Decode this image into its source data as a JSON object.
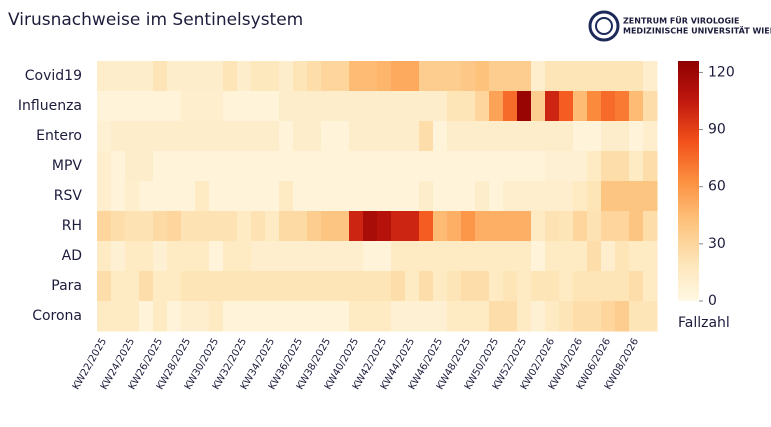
{
  "chart_data": {
    "type": "heatmap",
    "title": "Virusnachweise im Sentinelsystem",
    "logo": [
      "ZENTRUM FÜR VIROLOGIE",
      "MEDIZINISCHE UNIVERSITÄT WIEN"
    ],
    "colorbar_label": "Fallzahl",
    "rows": [
      "Covid19",
      "Influenza",
      "Entero",
      "MPV",
      "RSV",
      "RH",
      "AD",
      "Para",
      "Corona"
    ],
    "categories": [
      "KW22/2025",
      null,
      "KW24/2025",
      null,
      "KW26/2025",
      null,
      "KW28/2025",
      null,
      "KW30/2025",
      null,
      "KW32/2025",
      null,
      "KW34/2025",
      null,
      "KW36/2025",
      null,
      "KW38/2025",
      null,
      "KW40/2025",
      null,
      "KW42/2025",
      null,
      "KW44/2025",
      null,
      "KW46/2025",
      null,
      "KW48/2025",
      null,
      "KW50/2025",
      null,
      "KW52/2025",
      null,
      "KW02/2026",
      null,
      "KW04/2026",
      null,
      "KW06/2026",
      null,
      "KW08/2026",
      null
    ],
    "z": [
      [
        12,
        12,
        12,
        12,
        20,
        12,
        12,
        12,
        12,
        20,
        12,
        18,
        18,
        12,
        20,
        25,
        30,
        30,
        45,
        45,
        48,
        52,
        52,
        35,
        35,
        35,
        38,
        42,
        35,
        35,
        35,
        10,
        20,
        20,
        20,
        20,
        20,
        20,
        20,
        10
      ],
      [
        5,
        5,
        5,
        5,
        5,
        5,
        10,
        10,
        10,
        5,
        5,
        5,
        5,
        12,
        12,
        12,
        12,
        12,
        12,
        12,
        12,
        12,
        12,
        12,
        12,
        20,
        20,
        30,
        55,
        75,
        122,
        35,
        100,
        80,
        45,
        65,
        75,
        70,
        45,
        25
      ],
      [
        8,
        12,
        12,
        12,
        12,
        12,
        12,
        12,
        12,
        12,
        12,
        12,
        12,
        5,
        12,
        12,
        5,
        5,
        12,
        12,
        12,
        12,
        12,
        25,
        5,
        12,
        12,
        12,
        12,
        12,
        12,
        12,
        12,
        12,
        5,
        5,
        12,
        12,
        5,
        10
      ],
      [
        10,
        5,
        12,
        12,
        5,
        5,
        5,
        5,
        5,
        5,
        5,
        5,
        5,
        5,
        5,
        5,
        5,
        5,
        5,
        5,
        5,
        5,
        5,
        5,
        5,
        5,
        5,
        5,
        5,
        5,
        5,
        5,
        8,
        8,
        8,
        15,
        25,
        25,
        15,
        25
      ],
      [
        10,
        5,
        10,
        5,
        5,
        5,
        5,
        15,
        5,
        5,
        5,
        5,
        5,
        15,
        5,
        5,
        5,
        5,
        5,
        5,
        5,
        5,
        5,
        12,
        5,
        5,
        5,
        12,
        5,
        10,
        10,
        10,
        10,
        10,
        15,
        20,
        40,
        40,
        40,
        40
      ],
      [
        30,
        25,
        22,
        22,
        28,
        30,
        22,
        22,
        22,
        22,
        15,
        22,
        15,
        28,
        28,
        35,
        40,
        40,
        100,
        115,
        110,
        100,
        100,
        80,
        45,
        50,
        60,
        50,
        50,
        50,
        50,
        15,
        22,
        20,
        30,
        22,
        30,
        30,
        40,
        25
      ],
      [
        15,
        8,
        15,
        15,
        8,
        15,
        15,
        15,
        5,
        15,
        15,
        10,
        10,
        10,
        10,
        10,
        10,
        10,
        10,
        5,
        5,
        15,
        15,
        15,
        15,
        15,
        15,
        15,
        15,
        15,
        15,
        5,
        15,
        15,
        15,
        25,
        10,
        20,
        15,
        15
      ],
      [
        25,
        15,
        15,
        25,
        15,
        15,
        20,
        20,
        20,
        20,
        20,
        20,
        20,
        20,
        20,
        20,
        20,
        20,
        20,
        20,
        20,
        25,
        15,
        25,
        15,
        20,
        25,
        25,
        15,
        20,
        15,
        20,
        20,
        15,
        20,
        20,
        20,
        20,
        25,
        15
      ],
      [
        15,
        15,
        15,
        5,
        15,
        5,
        10,
        10,
        15,
        5,
        5,
        5,
        5,
        5,
        5,
        5,
        5,
        5,
        15,
        15,
        15,
        8,
        8,
        8,
        8,
        15,
        15,
        15,
        25,
        25,
        15,
        8,
        15,
        20,
        25,
        25,
        30,
        35,
        20,
        20
      ]
    ],
    "zlim": [
      0,
      126
    ],
    "zticks": [
      0,
      30,
      60,
      90,
      120
    ],
    "colorscale": [
      "#fff8e4",
      "#fde4b6",
      "#fdc27c",
      "#fc9040",
      "#f2501a",
      "#c0180e",
      "#8e0000"
    ]
  }
}
